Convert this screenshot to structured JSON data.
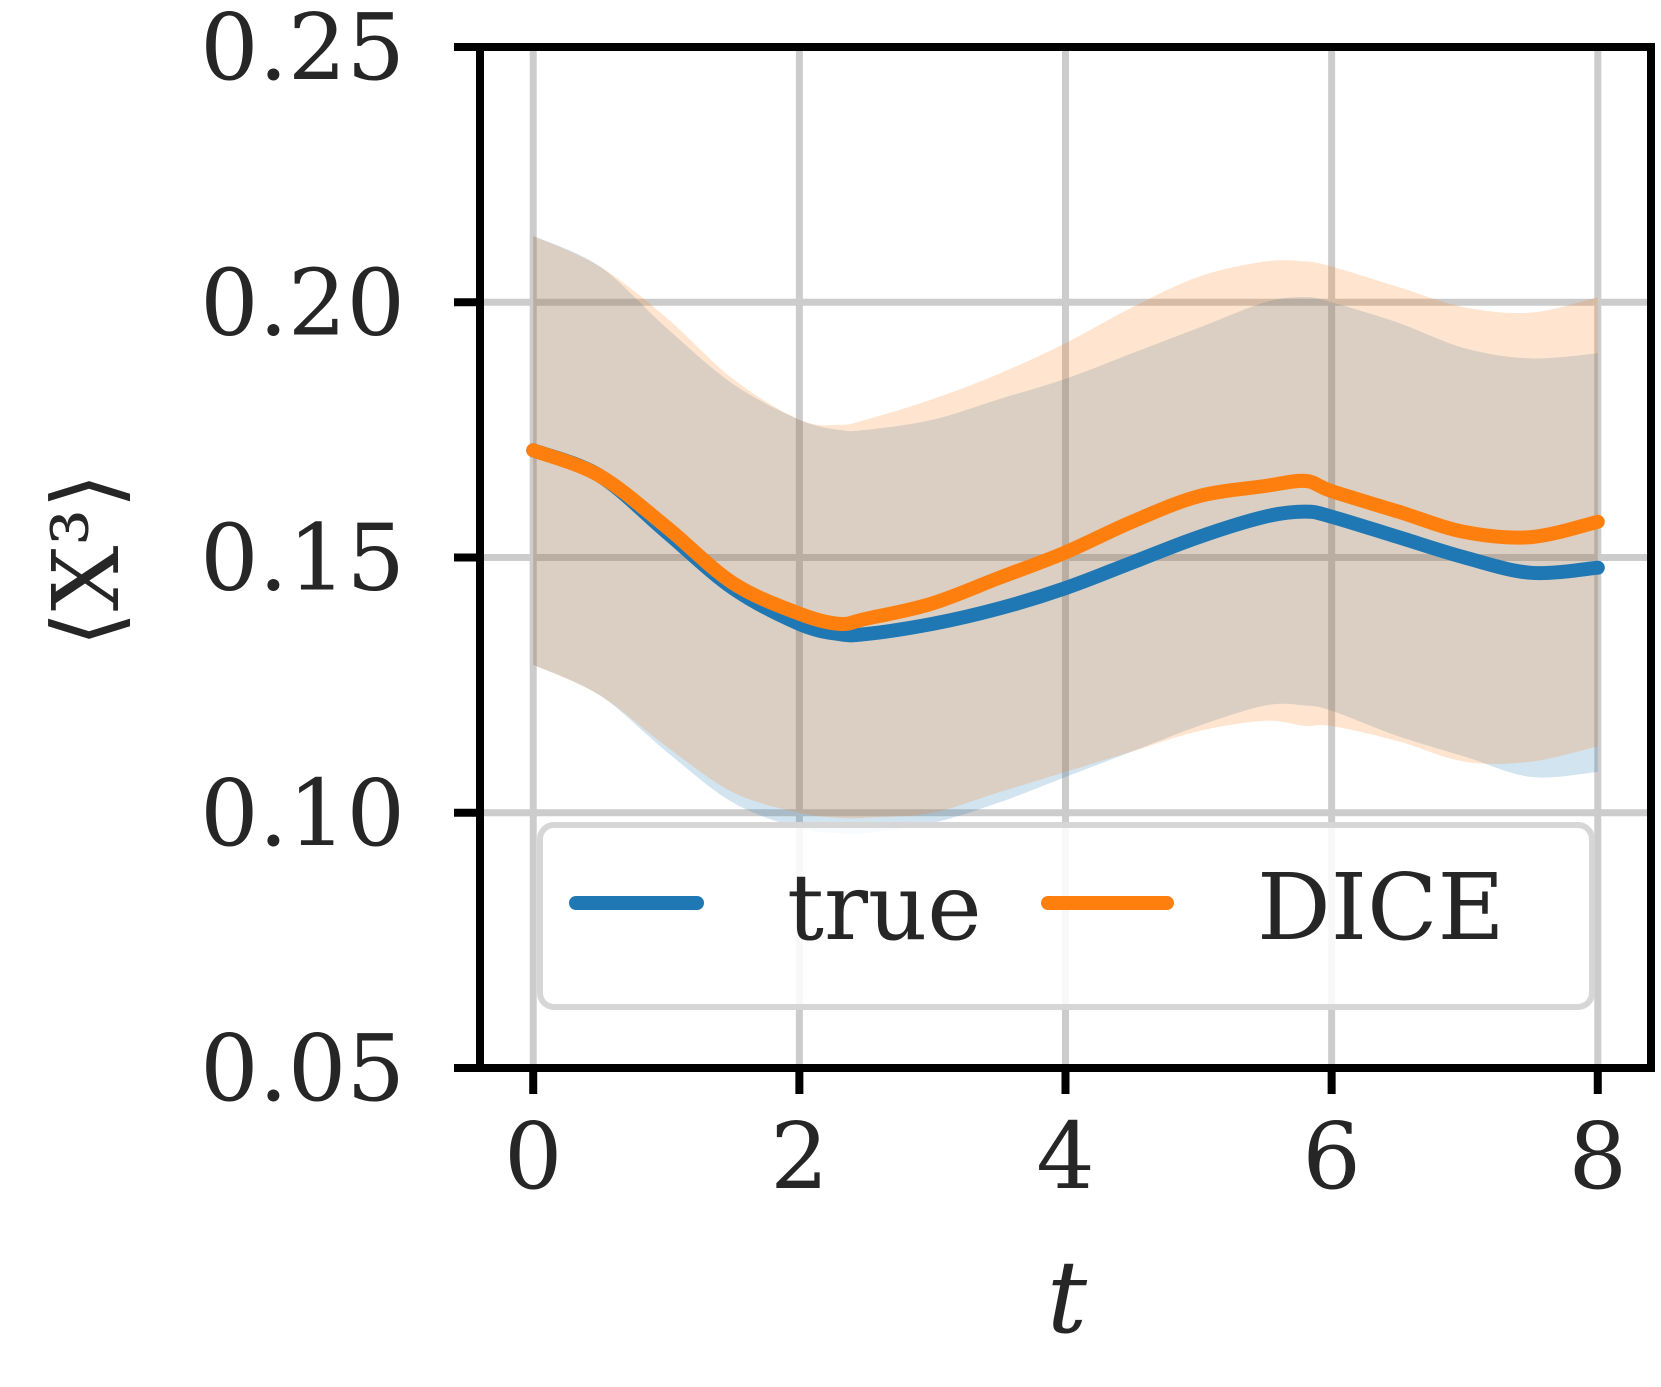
{
  "chart_data": {
    "type": "line",
    "title": "",
    "xlabel": "t",
    "ylabel": "⟨X³⟩",
    "xlim": [
      -0.4,
      8.4
    ],
    "ylim": [
      0.05,
      0.25
    ],
    "xticks": [
      0,
      2,
      4,
      6,
      8
    ],
    "xtick_labels": [
      "0",
      "2",
      "4",
      "6",
      "8"
    ],
    "yticks": [
      0.05,
      0.1,
      0.15,
      0.2,
      0.25
    ],
    "ytick_labels": [
      "0.05",
      "0.10",
      "0.15",
      "0.20",
      "0.25"
    ],
    "grid": true,
    "legend": {
      "position": "lower-center",
      "columns": 2
    },
    "x": [
      0,
      0.5,
      1.0,
      1.5,
      2.0,
      2.3,
      2.5,
      3.0,
      3.5,
      4.0,
      4.5,
      5.0,
      5.5,
      5.8,
      6.0,
      6.5,
      7.0,
      7.5,
      8.0
    ],
    "series": [
      {
        "name": "true",
        "color": "#1f77b4",
        "values": [
          0.171,
          0.166,
          0.155,
          0.144,
          0.137,
          0.135,
          0.135,
          0.137,
          0.14,
          0.144,
          0.149,
          0.154,
          0.158,
          0.159,
          0.158,
          0.154,
          0.15,
          0.147,
          0.148
        ],
        "band_lower": [
          0.129,
          0.123,
          0.112,
          0.102,
          0.097,
          0.096,
          0.096,
          0.098,
          0.102,
          0.107,
          0.112,
          0.117,
          0.121,
          0.121,
          0.12,
          0.115,
          0.111,
          0.107,
          0.108
        ],
        "band_upper": [
          0.213,
          0.207,
          0.195,
          0.184,
          0.177,
          0.175,
          0.175,
          0.177,
          0.181,
          0.185,
          0.19,
          0.195,
          0.2,
          0.201,
          0.2,
          0.196,
          0.191,
          0.189,
          0.19
        ]
      },
      {
        "name": "DICE",
        "color": "#ff7f0e",
        "values": [
          0.171,
          0.166,
          0.156,
          0.145,
          0.139,
          0.137,
          0.138,
          0.141,
          0.146,
          0.151,
          0.157,
          0.162,
          0.164,
          0.165,
          0.163,
          0.159,
          0.155,
          0.154,
          0.157
        ],
        "band_lower": [
          0.129,
          0.123,
          0.113,
          0.104,
          0.1,
          0.099,
          0.099,
          0.1,
          0.104,
          0.108,
          0.112,
          0.116,
          0.118,
          0.117,
          0.117,
          0.114,
          0.11,
          0.11,
          0.113
        ],
        "band_upper": [
          0.213,
          0.207,
          0.197,
          0.185,
          0.177,
          0.176,
          0.177,
          0.181,
          0.186,
          0.192,
          0.199,
          0.205,
          0.208,
          0.208,
          0.207,
          0.203,
          0.199,
          0.198,
          0.201
        ]
      }
    ]
  }
}
